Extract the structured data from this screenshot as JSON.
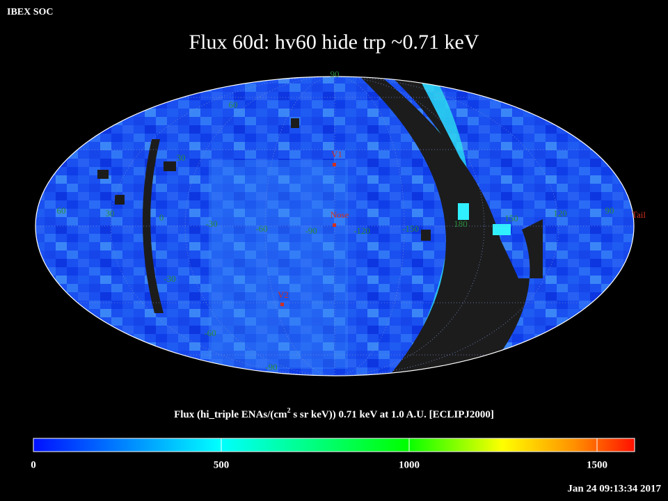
{
  "header": {
    "source": "IBEX SOC",
    "title": "Flux   60d: hv60 hide trp ~0.71 keV"
  },
  "map": {
    "lat_labels": [
      "90",
      "60",
      "30",
      "0",
      "-30",
      "-60",
      "-90"
    ],
    "lon_labels": [
      "60",
      "30",
      "-30",
      "-60",
      "-90",
      "-120",
      "-150",
      "180",
      "150",
      "120",
      "90"
    ],
    "points": [
      "V1",
      "Nose",
      "V2",
      "Tail"
    ]
  },
  "colorbar": {
    "label_pre": "Flux (hi_triple ENAs/(cm",
    "label_sup": "2",
    "label_post": " s sr keV))  0.71 keV at 1.0 A.U. [ECLIPJ2000]",
    "lim": [
      0,
      1600
    ],
    "ticks": [
      0,
      500,
      1000,
      1500
    ]
  },
  "timestamp": "Jan 24 09:13:34 2017"
}
